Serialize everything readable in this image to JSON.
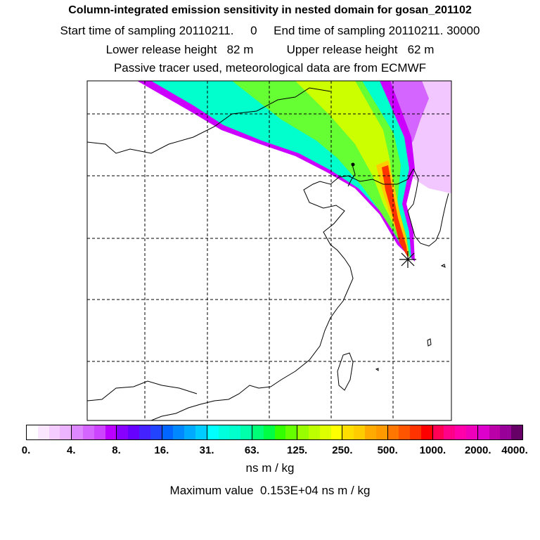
{
  "header": {
    "title": "Column-integrated emission sensitivity in nested domain for gosan_201102",
    "time_line": "Start time of sampling 20110211.     0     End time of sampling 20110211. 30000",
    "height_line": "Lower release height   82 m          Upper release height   62 m",
    "tracer_line": "Passive tracer used, meteorological data are from ECMWF"
  },
  "map": {
    "plume_colors": [
      "#cc00ff",
      "#00ffcc",
      "#66ff33",
      "#ccff00",
      "#ffcc00",
      "#ff3300"
    ],
    "marker": "release-site-star-icon"
  },
  "colorbar": {
    "tick_labels": [
      "0.",
      "4.",
      "8.",
      "16.",
      "31.",
      "63.",
      "125.",
      "250.",
      "500.",
      "1000.",
      "2000.",
      "4000."
    ],
    "segment_colors": [
      [
        "#ffffff",
        "#fbe6ff",
        "#f4ccff",
        "#ecb3ff"
      ],
      [
        "#dd88ff",
        "#d466ff",
        "#cc44ff",
        "#bb00ff"
      ],
      [
        "#8800ff",
        "#6600ff",
        "#4422ff",
        "#2244ff"
      ],
      [
        "#0066ff",
        "#0088ff",
        "#00aaff",
        "#00ccff"
      ],
      [
        "#00ffff",
        "#00ffdd",
        "#00ffcc",
        "#00ffaa"
      ],
      [
        "#00ff77",
        "#00ff44",
        "#33ff00",
        "#66ff00"
      ],
      [
        "#99ff00",
        "#bbff00",
        "#ddff00",
        "#ffff00"
      ],
      [
        "#ffdd00",
        "#ffcc00",
        "#ffaa00",
        "#ff9900"
      ],
      [
        "#ff7700",
        "#ff5500",
        "#ff3300",
        "#ff0000"
      ],
      [
        "#ff0055",
        "#ff0088",
        "#ff00aa",
        "#ee00bb"
      ],
      [
        "#dd00cc",
        "#bb00aa",
        "#990099",
        "#660066"
      ]
    ],
    "units": "ns m / kg",
    "maximum_text": "Maximum value  0.153E+04 ns m / kg"
  }
}
